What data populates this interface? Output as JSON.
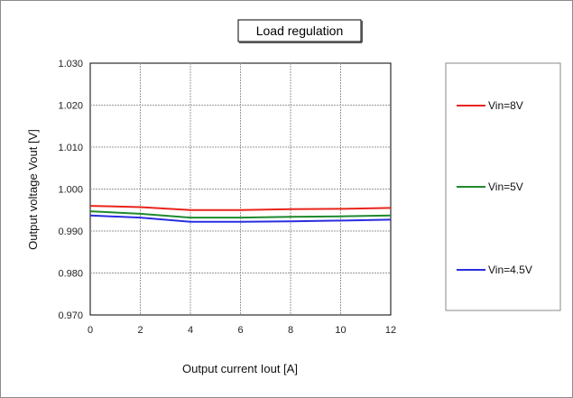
{
  "chart_data": {
    "type": "line",
    "title": "Load regulation",
    "xlabel": "Output current Iout [A]",
    "ylabel": "Output voltage Vout [V]",
    "xlim": [
      0,
      12
    ],
    "ylim": [
      0.97,
      1.03
    ],
    "x_ticks": [
      "0",
      "2",
      "4",
      "6",
      "8",
      "10",
      "12"
    ],
    "y_ticks": [
      "0.970",
      "0.980",
      "0.990",
      "1.000",
      "1.010",
      "1.020",
      "1.030"
    ],
    "grid": true,
    "legend_position": "right",
    "x": [
      0,
      2,
      4,
      6,
      8,
      10,
      12
    ],
    "series": [
      {
        "name": "Vin=8V",
        "color": "#e8241c",
        "values": [
          0.996,
          0.9957,
          0.995,
          0.995,
          0.9952,
          0.9953,
          0.9955
        ]
      },
      {
        "name": "Vin=5V",
        "color": "#1f8a2e",
        "values": [
          0.9947,
          0.9941,
          0.9932,
          0.9932,
          0.9934,
          0.9935,
          0.9937
        ]
      },
      {
        "name": "Vin=4.5V",
        "color": "#2a2ee0",
        "values": [
          0.9937,
          0.9932,
          0.9922,
          0.9922,
          0.9923,
          0.9925,
          0.9927
        ]
      }
    ]
  }
}
